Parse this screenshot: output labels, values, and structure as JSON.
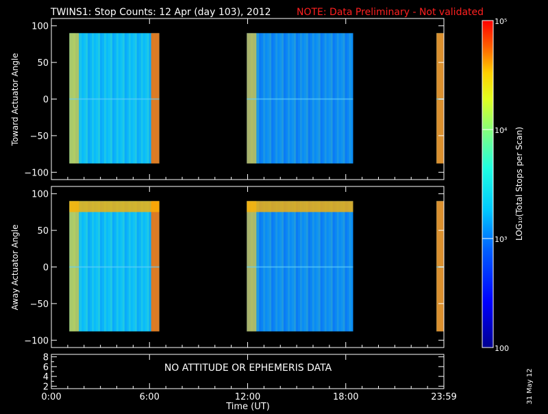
{
  "title": {
    "main": "TWINS1: Stop Counts: 12 Apr (day 103), 2012",
    "note": "NOTE: Data Preliminary - Not validated",
    "note_color": "#ff2020"
  },
  "side_date": "31 May 12",
  "chart_data": [
    {
      "type": "heatmap",
      "name": "toward-panel",
      "ylabel": "Toward Actuator Angle",
      "ylim": [
        -110,
        110
      ],
      "yticks": [
        -100,
        -50,
        0,
        50,
        100
      ],
      "ytick_labels": [
        "−100",
        "−50",
        "0",
        "50",
        "100"
      ],
      "x_hours_range": [
        0,
        24
      ],
      "data_blocks_hours": [
        [
          1.1,
          6.6
        ],
        [
          11.95,
          18.45
        ],
        [
          23.55,
          24.0
        ]
      ],
      "y_data_range": [
        -88,
        90
      ]
    },
    {
      "type": "heatmap",
      "name": "away-panel",
      "ylabel": "Away Actuator Angle",
      "ylim": [
        -110,
        110
      ],
      "yticks": [
        -100,
        -50,
        0,
        50,
        100
      ],
      "ytick_labels": [
        "−100",
        "−50",
        "0",
        "50",
        "100"
      ],
      "x_hours_range": [
        0,
        24
      ],
      "data_blocks_hours": [
        [
          1.1,
          6.6
        ],
        [
          11.95,
          18.45
        ],
        [
          23.55,
          24.0
        ]
      ],
      "y_data_range": [
        -88,
        90
      ]
    },
    {
      "type": "line",
      "name": "ephemeris-panel",
      "ylim": [
        1.5,
        8.5
      ],
      "yticks": [
        2,
        4,
        6,
        8
      ],
      "yticks_minor": [
        3,
        5,
        7
      ],
      "ytick_labels": [
        "2",
        "4",
        "6",
        "8"
      ],
      "annotation": "NO ATTITUDE OR EPHEMERIS DATA",
      "xlabel": "Time (UT)",
      "xticks_hours": [
        0,
        6,
        12,
        18,
        24
      ],
      "xtick_labels": [
        "0:00",
        "6:00",
        "12:00",
        "18:00",
        "23:59"
      ]
    }
  ],
  "colorbar": {
    "label": "LOG₁₀(Total Stops per Scan)",
    "scale": "log",
    "range": [
      100,
      100000
    ],
    "tick_values": [
      100,
      1000,
      10000,
      100000
    ],
    "tick_labels": [
      "100",
      "10³",
      "10⁴",
      "10⁵"
    ]
  }
}
